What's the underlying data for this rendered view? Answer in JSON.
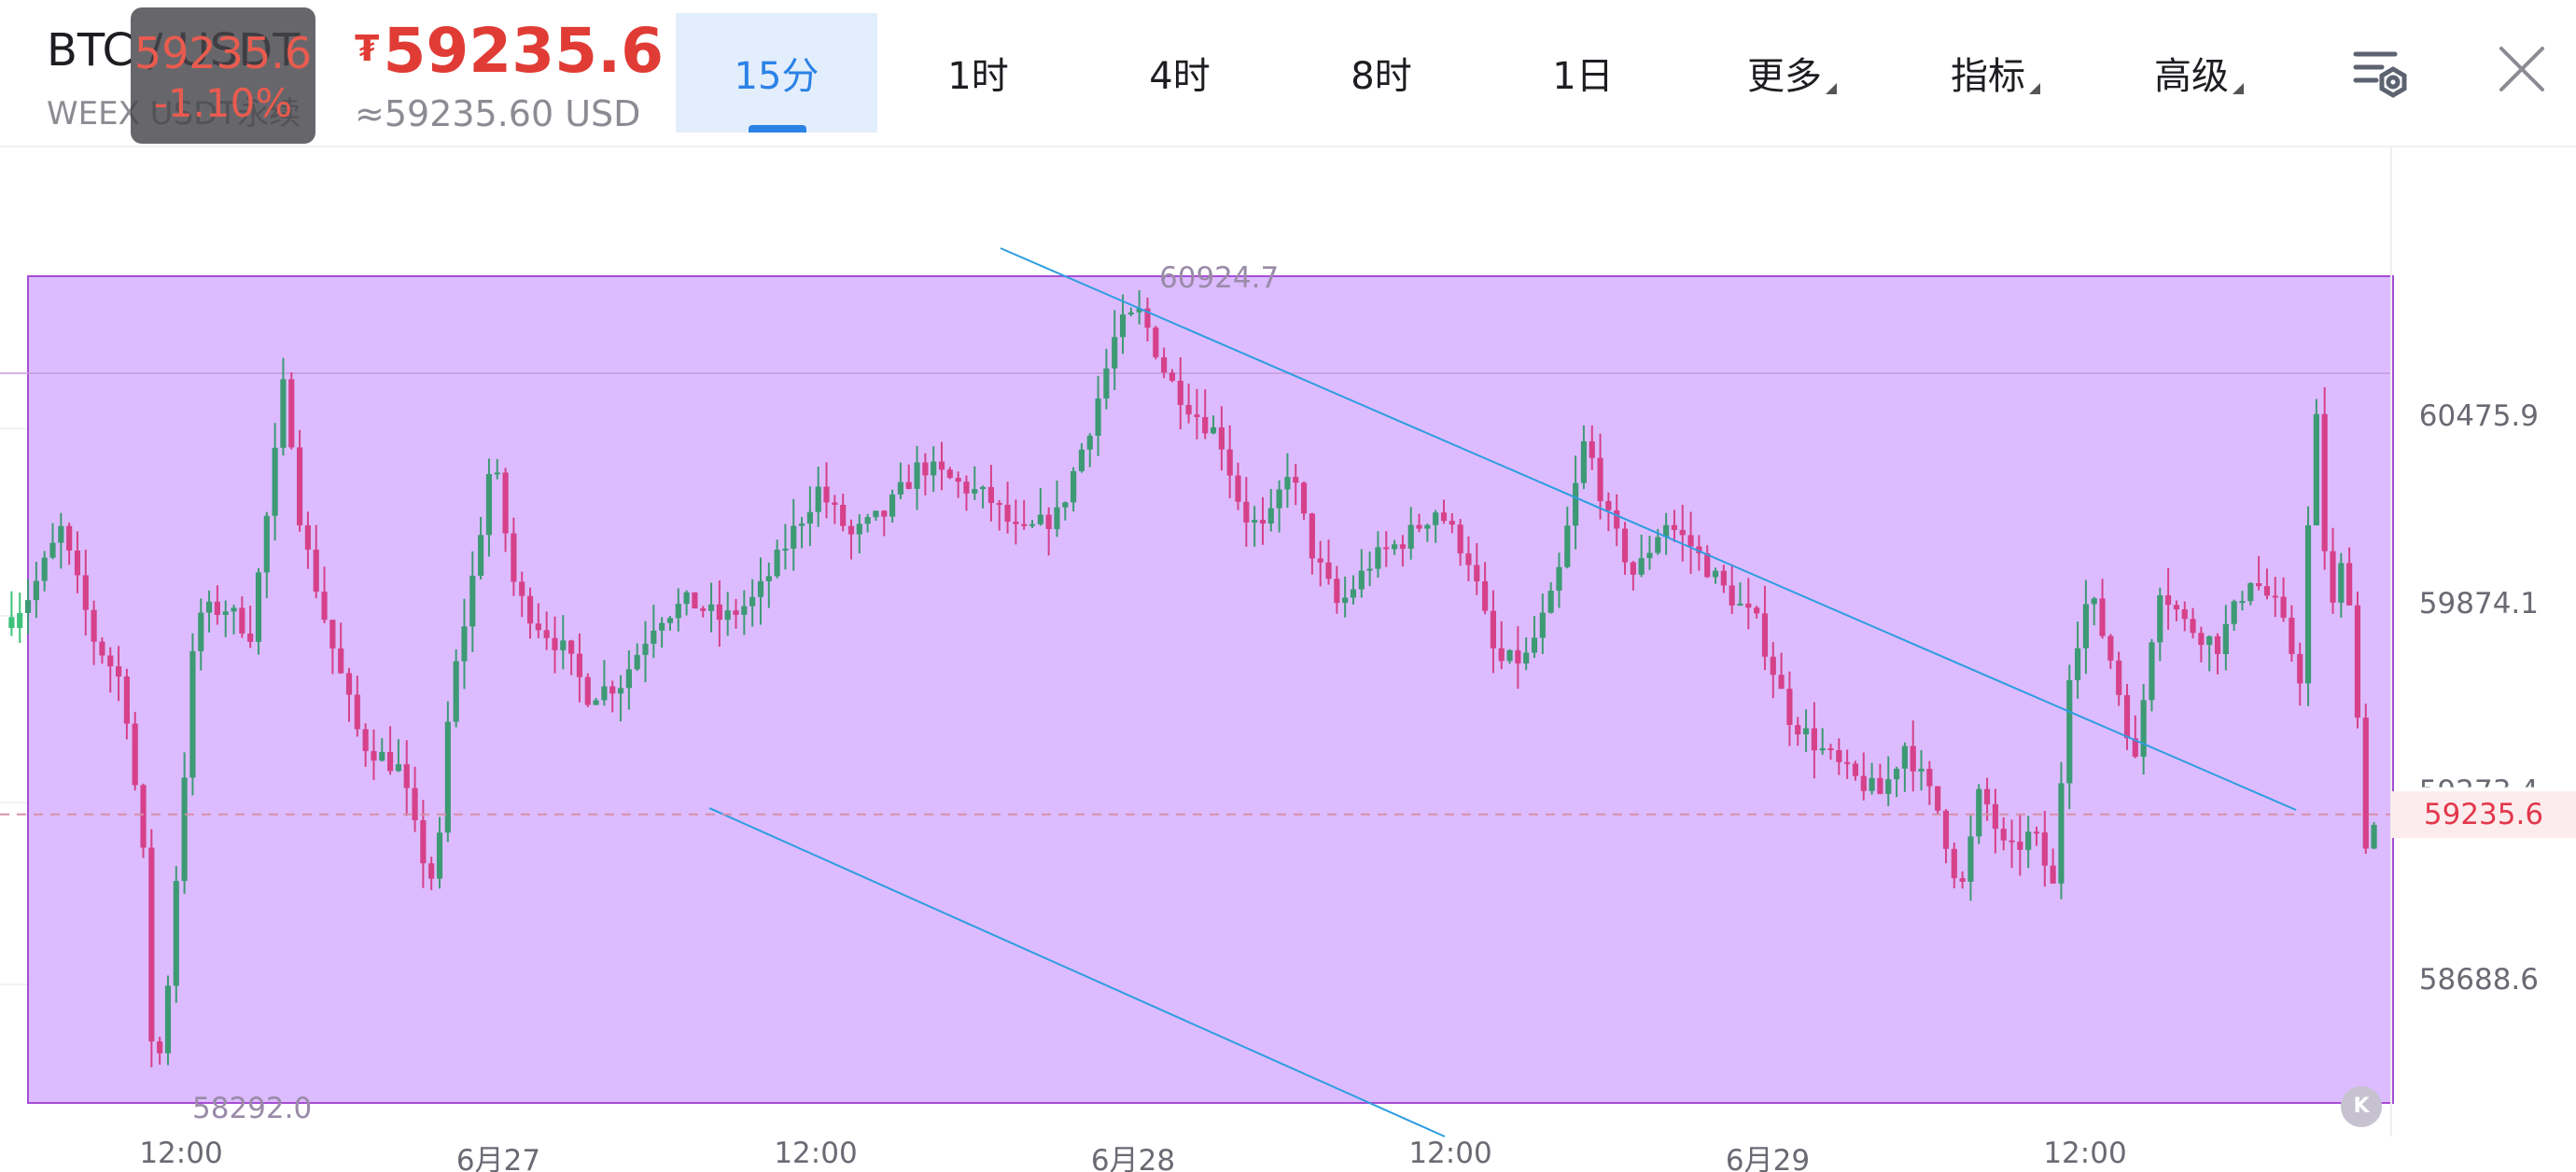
{
  "header": {
    "pair": "BTC / USDT",
    "exchange": "WEEX USDT永续",
    "badge_price": "59235.6",
    "badge_change": "-1.10%",
    "price_currency": "₮",
    "price": "59235.6",
    "price_arrow": "↘",
    "usd_value": "≈59235.60 USD",
    "colors": {
      "down": "#e03c35",
      "accent": "#2b82e6"
    }
  },
  "tabs": [
    {
      "label": "15分",
      "active": true
    },
    {
      "label": "1时",
      "active": false
    },
    {
      "label": "4时",
      "active": false
    },
    {
      "label": "8时",
      "active": false
    },
    {
      "label": "1日",
      "active": false
    },
    {
      "label": "更多",
      "active": false,
      "dropdown": true
    },
    {
      "label": "指标",
      "active": false,
      "dropdown": true
    },
    {
      "label": "高级",
      "active": false,
      "dropdown": true
    }
  ],
  "header_icons": [
    "chart-settings-icon",
    "close-icon"
  ],
  "chart": {
    "y_ticks": [
      "60475.9",
      "59874.1",
      "59273.4",
      "58688.6"
    ],
    "x_ticks": [
      "12:00",
      "6月27",
      "12:00",
      "6月28",
      "12:00",
      "6月29",
      "12:00"
    ],
    "last_price": "59235.6",
    "high_label": "60924.7",
    "low_label": "58292.0",
    "reset_button_label": "K",
    "colors": {
      "up": "#3d9a74",
      "down": "#d6418a",
      "box_fill": "#dcbcff",
      "box_stroke": "#a64dd6",
      "trendline": "#2e9de0",
      "last_price_line": "#d88fa8"
    }
  },
  "chart_data": {
    "type": "candlestick",
    "interval": "15分",
    "x_ticks": [
      "12:00",
      "6月27",
      "12:00",
      "6月28",
      "12:00",
      "6月29",
      "12:00"
    ],
    "y_ticks": [
      60475.9,
      59874.1,
      59273.4,
      58688.6
    ],
    "ylim": [
      58200,
      61380
    ],
    "last_price": 59235.6,
    "high": 60924.7,
    "low": 58292.0,
    "close_path": [
      [
        0,
        59870
      ],
      [
        12,
        59950
      ],
      [
        30,
        60150
      ],
      [
        50,
        59800
      ],
      [
        68,
        59650
      ],
      [
        80,
        59100
      ],
      [
        86,
        58400
      ],
      [
        92,
        58500
      ],
      [
        104,
        59300
      ],
      [
        112,
        59880
      ],
      [
        130,
        59900
      ],
      [
        145,
        59820
      ],
      [
        158,
        60300
      ],
      [
        166,
        60650
      ],
      [
        176,
        60150
      ],
      [
        196,
        59750
      ],
      [
        212,
        59470
      ],
      [
        236,
        59380
      ],
      [
        248,
        59120
      ],
      [
        258,
        59000
      ],
      [
        266,
        59600
      ],
      [
        282,
        60050
      ],
      [
        292,
        60400
      ],
      [
        306,
        59950
      ],
      [
        318,
        59860
      ],
      [
        336,
        59760
      ],
      [
        350,
        59620
      ],
      [
        370,
        59660
      ],
      [
        392,
        59870
      ],
      [
        412,
        59920
      ],
      [
        432,
        59860
      ],
      [
        452,
        59930
      ],
      [
        472,
        60120
      ],
      [
        490,
        60280
      ],
      [
        510,
        60130
      ],
      [
        530,
        60200
      ],
      [
        552,
        60360
      ],
      [
        574,
        60300
      ],
      [
        594,
        60250
      ],
      [
        612,
        60130
      ],
      [
        636,
        60200
      ],
      [
        656,
        60500
      ],
      [
        672,
        60800
      ],
      [
        686,
        60850
      ],
      [
        702,
        60640
      ],
      [
        720,
        60520
      ],
      [
        734,
        60450
      ],
      [
        748,
        60200
      ],
      [
        762,
        60140
      ],
      [
        776,
        60360
      ],
      [
        790,
        60080
      ],
      [
        806,
        59900
      ],
      [
        826,
        60050
      ],
      [
        846,
        60120
      ],
      [
        866,
        60220
      ],
      [
        886,
        60050
      ],
      [
        902,
        59720
      ],
      [
        920,
        59740
      ],
      [
        938,
        59960
      ],
      [
        956,
        60450
      ],
      [
        970,
        60180
      ],
      [
        986,
        60000
      ],
      [
        1004,
        60180
      ],
      [
        1020,
        60100
      ],
      [
        1040,
        59960
      ],
      [
        1060,
        59850
      ],
      [
        1080,
        59550
      ],
      [
        1096,
        59460
      ],
      [
        1116,
        59360
      ],
      [
        1136,
        59300
      ],
      [
        1150,
        59460
      ],
      [
        1170,
        59250
      ],
      [
        1184,
        58980
      ],
      [
        1196,
        59320
      ],
      [
        1212,
        59100
      ],
      [
        1228,
        59180
      ],
      [
        1240,
        59000
      ],
      [
        1250,
        59700
      ],
      [
        1262,
        59950
      ],
      [
        1276,
        59720
      ],
      [
        1290,
        59400
      ],
      [
        1304,
        59980
      ],
      [
        1320,
        59850
      ],
      [
        1340,
        59780
      ],
      [
        1360,
        60000
      ],
      [
        1376,
        59900
      ],
      [
        1392,
        59650
      ],
      [
        1398,
        60660
      ],
      [
        1408,
        59850
      ],
      [
        1418,
        60100
      ],
      [
        1430,
        59150
      ],
      [
        1440,
        59250
      ]
    ]
  }
}
